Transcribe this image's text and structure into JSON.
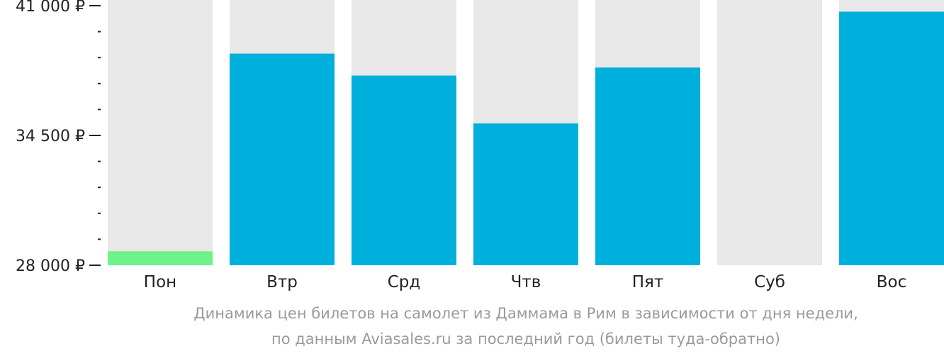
{
  "chart_data": {
    "type": "bar",
    "categories": [
      "Пон",
      "Втр",
      "Срд",
      "Чтв",
      "Пят",
      "Суб",
      "Вос"
    ],
    "values": [
      28700,
      38600,
      37500,
      35100,
      37900,
      null,
      40700
    ],
    "ylim": [
      28000,
      41000
    ],
    "yticks_major": [
      {
        "value": 41000,
        "label": "41 000 ₽"
      },
      {
        "value": 34500,
        "label": "34 500 ₽"
      },
      {
        "value": 28000,
        "label": "28 000 ₽"
      }
    ],
    "yticks_minor_step": 1300,
    "title": "",
    "xlabel": "",
    "ylabel": "",
    "grid": false,
    "legend": "none",
    "colors": {
      "bar": "#00b0dc",
      "lowest": "#6ef28a",
      "background": "#e8e8e8",
      "axis": "#222222"
    }
  },
  "caption": {
    "line1": "Динамика цен билетов на самолет из Даммама в Рим в зависимости от дня недели,",
    "line2": "по данным Aviasales.ru за последний год (билеты туда-обратно)"
  }
}
